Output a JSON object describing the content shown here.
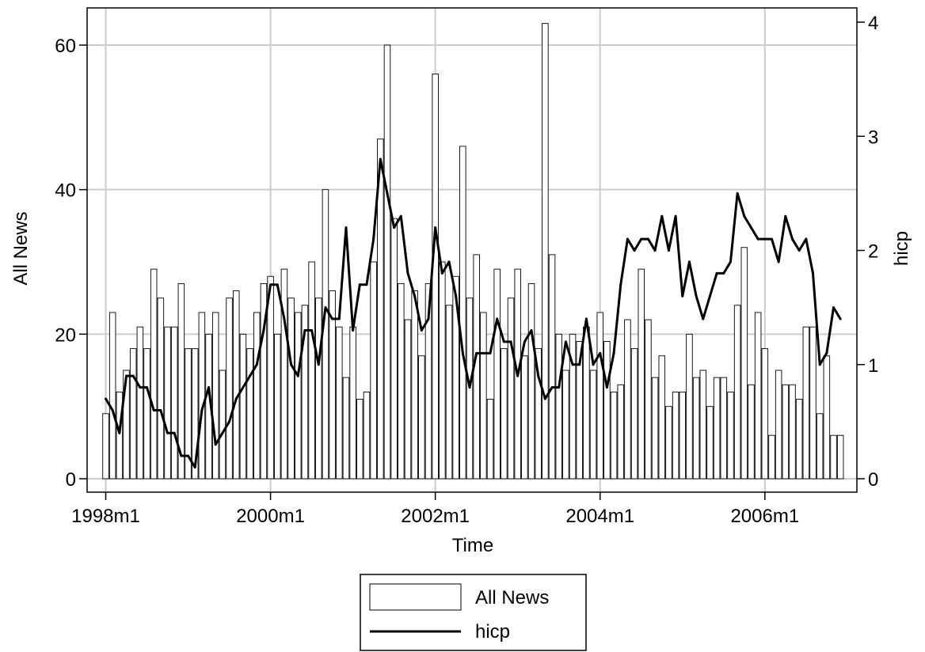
{
  "chart_data": {
    "type": "bar+line",
    "title": "",
    "xlabel": "Time",
    "ylabel_left": "All News",
    "ylabel_right": "hicp",
    "ylim_left": [
      0,
      65
    ],
    "ylim_right": [
      0,
      4.1
    ],
    "x_ticks": [
      "1998m1",
      "2000m1",
      "2002m1",
      "2004m1",
      "2006m1"
    ],
    "y_left_ticks": [
      "0",
      "20",
      "40",
      "60"
    ],
    "y_right_ticks": [
      "0",
      "1",
      "2",
      "3",
      "4"
    ],
    "grid": true,
    "legend_position": "bottom",
    "x_start": "1998m1",
    "x_end": "2006m12",
    "series": [
      {
        "name": "All News",
        "kind": "bar",
        "axis": "left",
        "color": "#ffffff",
        "stroke": "#000000",
        "values": [
          9,
          23,
          12,
          15,
          18,
          21,
          18,
          29,
          25,
          21,
          21,
          27,
          18,
          18,
          23,
          20,
          23,
          15,
          25,
          26,
          20,
          18,
          23,
          27,
          28,
          20,
          29,
          25,
          23,
          24,
          30,
          25,
          40,
          26,
          21,
          14,
          21,
          11,
          12,
          30,
          47,
          60,
          36,
          27,
          22,
          26,
          17,
          27,
          56,
          30,
          24,
          28,
          46,
          25,
          31,
          23,
          11,
          29,
          18,
          25,
          29,
          17,
          27,
          18,
          63,
          31,
          20,
          15,
          20,
          19,
          21,
          15,
          23,
          19,
          12,
          13,
          22,
          18,
          29,
          22,
          14,
          17,
          10,
          12,
          12,
          20,
          14,
          15,
          10,
          14,
          14,
          12,
          24,
          32,
          13,
          23,
          18,
          6,
          15,
          13,
          13,
          11,
          21,
          21,
          9,
          17,
          6,
          6
        ]
      },
      {
        "name": "hicp",
        "kind": "line",
        "axis": "right",
        "color": "#000000",
        "values": [
          0.7,
          0.6,
          0.4,
          0.9,
          0.9,
          0.8,
          0.8,
          0.6,
          0.6,
          0.4,
          0.4,
          0.2,
          0.2,
          0.1,
          0.6,
          0.8,
          0.3,
          0.4,
          0.5,
          0.7,
          0.8,
          0.9,
          1.0,
          1.3,
          1.7,
          1.7,
          1.4,
          1.0,
          0.9,
          1.3,
          1.3,
          1.0,
          1.5,
          1.4,
          1.4,
          2.2,
          1.3,
          1.7,
          1.7,
          2.1,
          2.8,
          2.5,
          2.2,
          2.3,
          1.8,
          1.6,
          1.3,
          1.4,
          2.2,
          1.8,
          1.9,
          1.6,
          1.1,
          0.8,
          1.1,
          1.1,
          1.1,
          1.4,
          1.2,
          1.2,
          0.9,
          1.2,
          1.3,
          0.9,
          0.7,
          0.8,
          0.8,
          1.2,
          1.0,
          1.0,
          1.4,
          1.0,
          1.1,
          0.8,
          1.1,
          1.7,
          2.1,
          2.0,
          2.1,
          2.1,
          2.0,
          2.3,
          2.0,
          2.3,
          1.6,
          1.9,
          1.6,
          1.4,
          1.6,
          1.8,
          1.8,
          1.9,
          2.5,
          2.3,
          2.2,
          2.1,
          2.1,
          2.1,
          1.9,
          2.3,
          2.1,
          2.0,
          2.1,
          1.8,
          1.0,
          1.1,
          1.5,
          1.4
        ]
      }
    ]
  }
}
